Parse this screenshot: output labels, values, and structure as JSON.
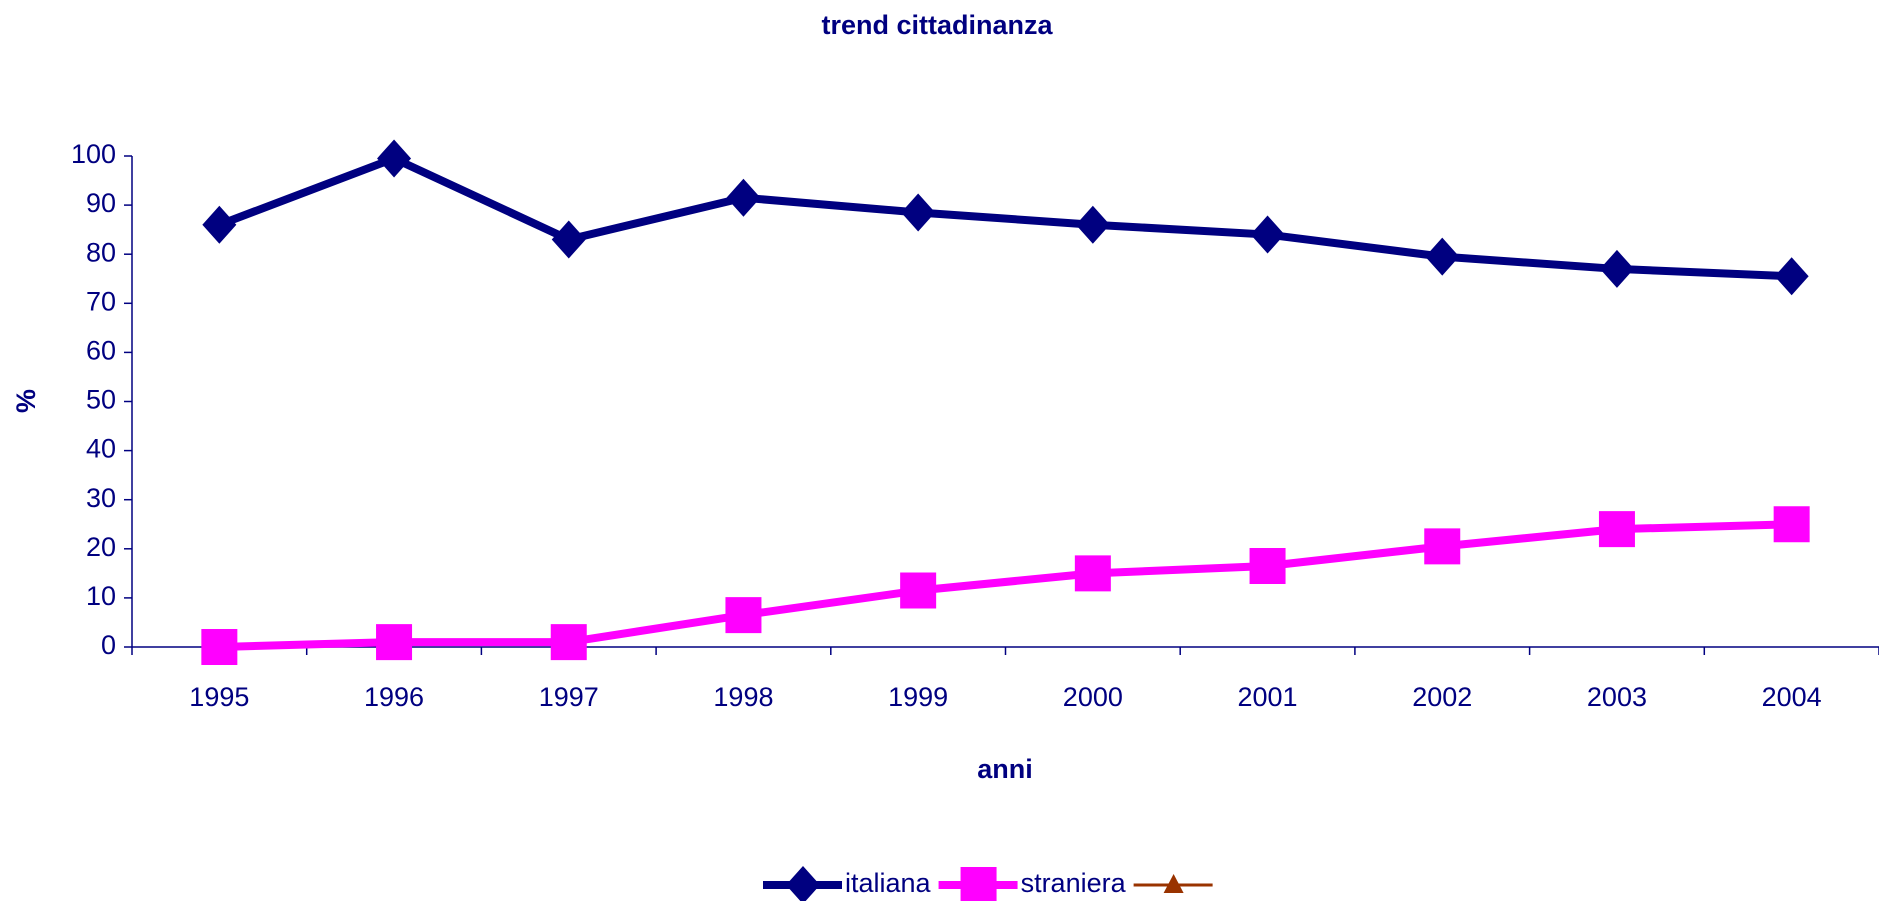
{
  "chart_data": {
    "type": "line",
    "title": "trend cittadinanza",
    "x_label": "anni",
    "y_label": "%",
    "categories": [
      "1995",
      "1996",
      "1997",
      "1998",
      "1999",
      "2000",
      "2001",
      "2002",
      "2003",
      "2004"
    ],
    "series": [
      {
        "name": "italiana",
        "color": "#000080",
        "marker": "diamond",
        "values": [
          86,
          99.5,
          83,
          91.5,
          88.5,
          86,
          84,
          79.5,
          77,
          75.5
        ]
      },
      {
        "name": "straniera",
        "color": "#ff00ff",
        "marker": "square",
        "values": [
          0,
          1,
          1,
          6.5,
          11.5,
          15,
          16.5,
          20.5,
          24,
          25
        ]
      },
      {
        "color": "#993300",
        "marker": "triangle",
        "values": [
          null,
          null,
          null,
          null,
          null,
          null,
          null,
          null,
          null,
          null
        ]
      }
    ],
    "ylim": [
      0,
      100
    ],
    "yticks": [
      0,
      10,
      20,
      30,
      40,
      50,
      60,
      70,
      80,
      90,
      100
    ],
    "grid": false,
    "legend": "bottom"
  }
}
